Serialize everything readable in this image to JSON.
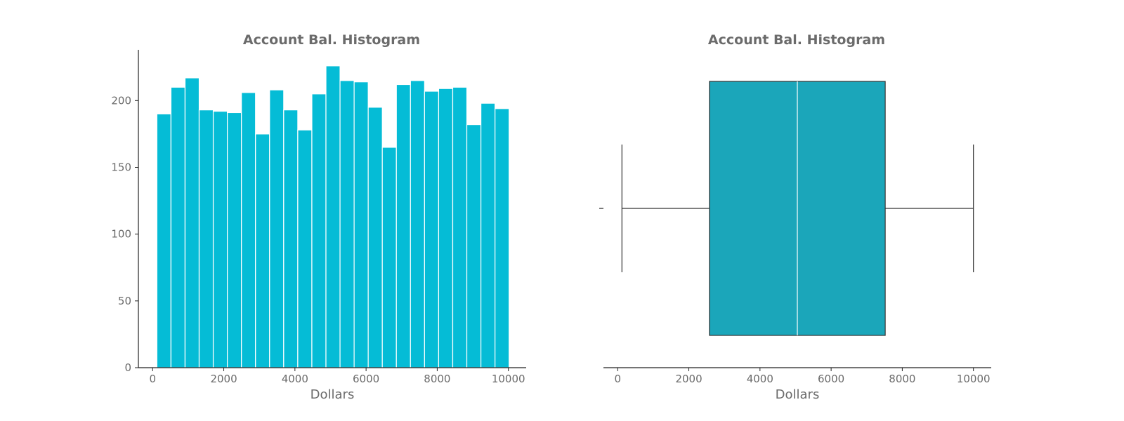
{
  "colors": {
    "histogram_bar": "#05bcd6",
    "box_fill": "#1ba6ba",
    "axis": "#222222",
    "text": "#6b6b6b",
    "bar_edge": "#ffffff"
  },
  "chart_data": [
    {
      "type": "bar",
      "title": "Account Bal. Histogram",
      "xlabel": "Dollars",
      "ylabel": "",
      "xlim": [
        -400,
        10500
      ],
      "ylim": [
        0,
        238
      ],
      "xticks": [
        0,
        2000,
        4000,
        6000,
        8000,
        10000
      ],
      "yticks": [
        0,
        50,
        100,
        150,
        200
      ],
      "bin_range": [
        120,
        10020
      ],
      "bins": 25,
      "values": [
        190,
        210,
        217,
        193,
        192,
        191,
        206,
        175,
        208,
        193,
        178,
        205,
        226,
        215,
        214,
        195,
        165,
        212,
        215,
        207,
        209,
        210,
        182,
        198,
        194
      ],
      "grid": false
    },
    {
      "type": "box",
      "title": "Account Bal. Histogram",
      "xlabel": "Dollars",
      "xlim": [
        -400,
        10500
      ],
      "xticks": [
        0,
        2000,
        4000,
        6000,
        8000,
        10000
      ],
      "whisker_low": 120,
      "q1": 2580,
      "median": 5050,
      "q3": 7520,
      "whisker_high": 10000,
      "grid": false
    }
  ]
}
